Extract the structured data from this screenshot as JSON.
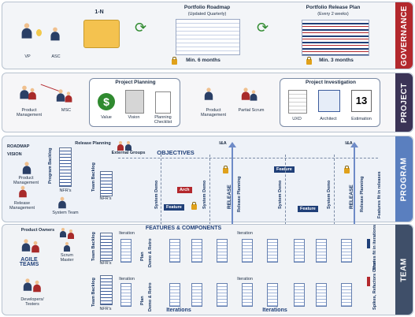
{
  "colors": {
    "governance": "#b3282d",
    "project": "#3b3356",
    "program": "#5a7fbf",
    "team": "#3f4f69",
    "accent_green": "#2f8a2f",
    "release_arrow": "#6e8bc7"
  },
  "governance": {
    "side_label": "GOVERNANCE",
    "vp": "VP",
    "asc": "ASC",
    "one_n": "1-N",
    "roadmap_title": "Portfolio Roadmap",
    "roadmap_sub": "(Updated Quarterly)",
    "roadmap_min": "Min. 6 months",
    "release_plan_title": "Portfolio Release Plan",
    "release_plan_sub": "(Every 2 weeks)",
    "release_min": "Min. 3 months"
  },
  "project": {
    "side_label": "PROJECT",
    "product_mgmt": "Product Management",
    "msc": "MSC",
    "planning_title": "Project Planning",
    "value": "Value",
    "vision": "Vision",
    "planning_checklist": "Planning Checklist",
    "product_mgmt2": "Product Management",
    "partial_scrum": "Partial Scrum",
    "investigation_title": "Project Investigation",
    "uxd": "UXD",
    "architect": "Architect",
    "estimation": "Estimation",
    "calendar_num": "13"
  },
  "program": {
    "side_label": "PROGRAM",
    "roadmap": "ROADMAP",
    "vision": "VISION",
    "product_mgmt": "Product Management",
    "release_mgmt": "Release Management",
    "system_team": "System Team",
    "program_backlog": "Program Backlog",
    "nfrs": "NFR's",
    "release_planning": "Release Planning",
    "external_groups": "External Groups",
    "objectives": "OBJECTIVES",
    "ia1": "I&A",
    "ia2": "I&A",
    "team_backlog": "Team Backlog",
    "nfrs2": "NFR's",
    "system_demo1": "System Demo",
    "arch": "Arch",
    "feature1": "Feature",
    "system_demo2": "System Demo",
    "release1": "RELEASE",
    "release_planning2": "Release Planning",
    "feature2": "Feature",
    "system_demo3": "System Demo",
    "feature3": "Feature",
    "system_demo4": "System Demo",
    "release2": "RELEASE",
    "release_planning3": "Release Planning",
    "features_fit": "Features fit in releases"
  },
  "team": {
    "side_label": "TEAM",
    "product_owners": "Product Owners",
    "scrum_master": "Scrum Master",
    "agile_teams": "AGILE TEAMS",
    "developers": "Developers/ Testers",
    "team_backlog1": "Team Backlog",
    "team_backlog2": "Team Backlog",
    "nfrs1": "NFR's",
    "nfrs2": "NFR's",
    "iteration_label": "Iteration",
    "features_components": "FEATURES & COMPONENTS",
    "plan": "Plan",
    "demo_retro": "Demo & Retro",
    "iterations1": "Iterations",
    "iterations2": "Iterations",
    "stories_fit": "Stories fit in iterations",
    "spikes": "Spikes, Refactors Other"
  }
}
